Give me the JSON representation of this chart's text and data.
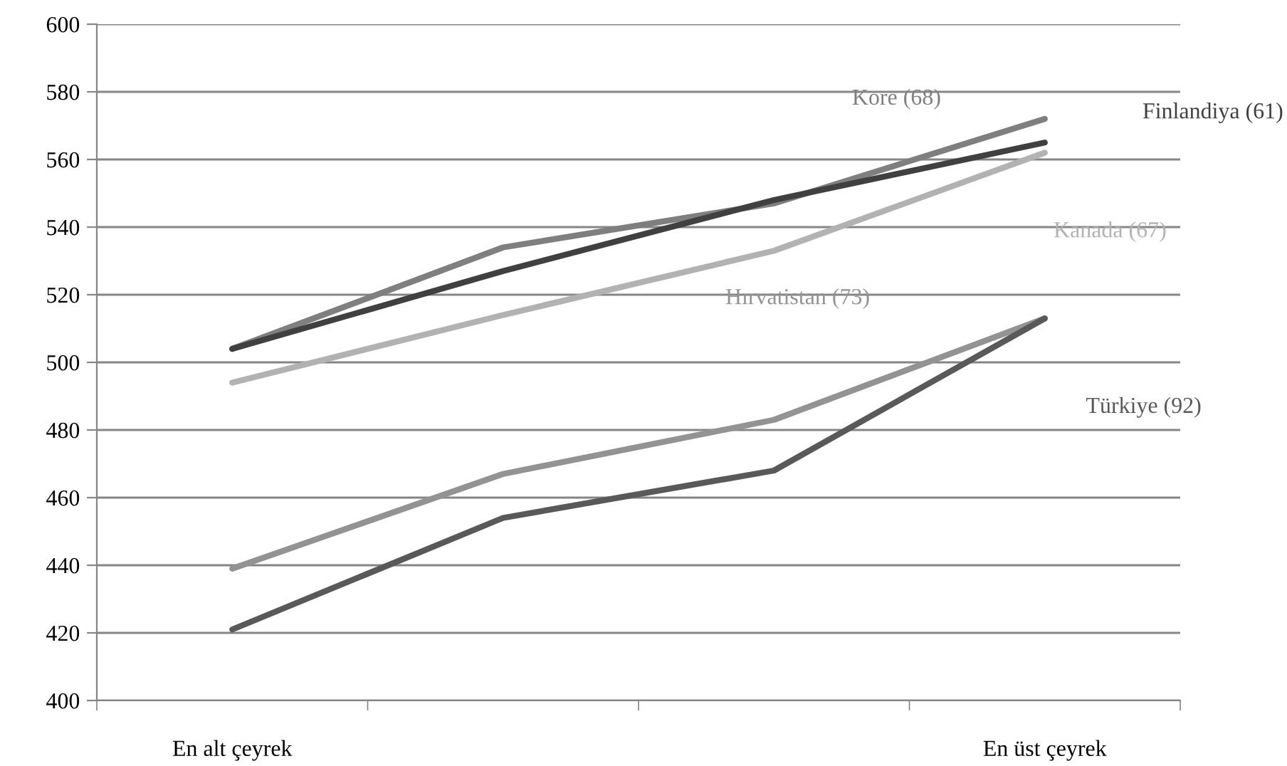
{
  "chart_data": {
    "type": "line",
    "categories": [
      "En alt çeyrek",
      null,
      null,
      "En üst çeyrek"
    ],
    "series": [
      {
        "name": "Kore (68)",
        "color": "#7f7f7f",
        "values": [
          504,
          534,
          547,
          572
        ]
      },
      {
        "name": "Finlandiya (61)",
        "color": "#404040",
        "values": [
          504,
          527,
          548,
          565
        ]
      },
      {
        "name": "Kanada (67)",
        "color": "#b2b2b2",
        "values": [
          494,
          514,
          533,
          562
        ]
      },
      {
        "name": "Hırvatistan (73)",
        "color": "#939393",
        "values": [
          439,
          467,
          483,
          513
        ]
      },
      {
        "name": "Türkiye (92)",
        "color": "#595959",
        "values": [
          421,
          454,
          468,
          513
        ]
      }
    ],
    "ylim": [
      400,
      600
    ],
    "yticks": [
      400,
      420,
      440,
      460,
      480,
      500,
      520,
      540,
      560,
      580,
      600
    ],
    "grid": "y",
    "legend": false,
    "marker": "none",
    "line_style": "solid"
  }
}
